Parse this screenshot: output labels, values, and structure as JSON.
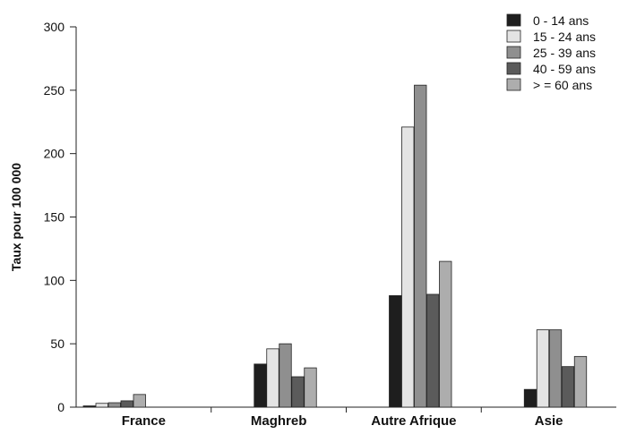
{
  "chart_data": {
    "type": "bar",
    "ylabel": "Taux pour 100 000",
    "xlabel": "",
    "ylim": [
      0,
      300
    ],
    "yticks": [
      0,
      50,
      100,
      150,
      200,
      250,
      300
    ],
    "grid": false,
    "legend_position": "top-right",
    "categories": [
      "France",
      "Maghreb",
      "Autre Afrique",
      "Asie"
    ],
    "series": [
      {
        "name": "0 - 14 ans",
        "color": "#1e1e1e",
        "values": [
          1,
          34,
          88,
          14
        ]
      },
      {
        "name": "15 - 24 ans",
        "color": "#e4e4e4",
        "values": [
          3,
          46,
          221,
          61
        ]
      },
      {
        "name": "25 - 39 ans",
        "color": "#8f8f8f",
        "values": [
          3.5,
          50,
          254,
          61
        ]
      },
      {
        "name": "40 - 59 ans",
        "color": "#5b5b5b",
        "values": [
          5,
          24,
          89,
          32
        ]
      },
      {
        "name": "> =  60 ans",
        "color": "#adadad",
        "values": [
          10,
          31,
          115,
          40
        ]
      }
    ]
  }
}
